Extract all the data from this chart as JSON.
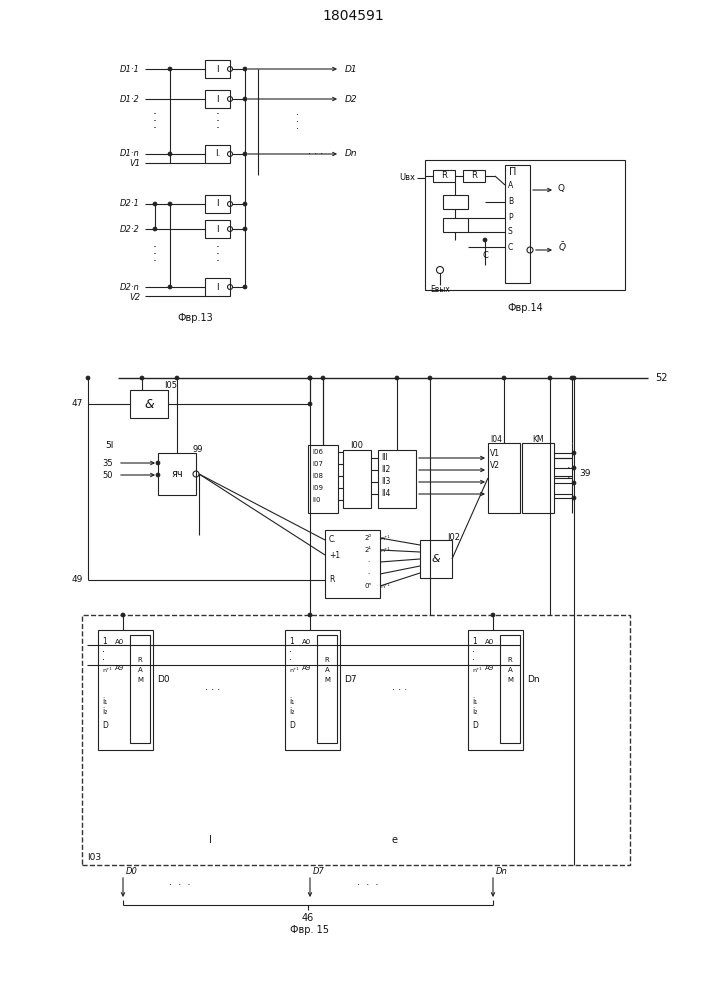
{
  "title": "1804591",
  "fig13_caption": "Фвр.13",
  "fig14_caption": "Фвр.14",
  "fig15_caption": "Фвр. 15"
}
